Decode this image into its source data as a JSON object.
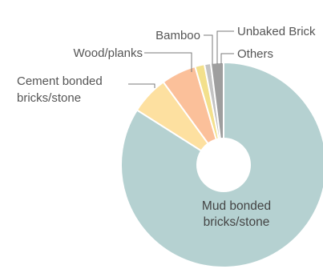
{
  "chart_data": {
    "type": "pie",
    "title": "",
    "donut": true,
    "slices": [
      {
        "label": "Mud bonded bricks/stone",
        "label_lines": [
          "Mud bonded",
          "bricks/stone"
        ],
        "value": 84.0,
        "color": "#b5d1d1"
      },
      {
        "label": "Cement bonded bricks/stone",
        "label_lines": [
          "Cement bonded",
          "bricks/stone"
        ],
        "value": 6.0,
        "color": "#fde0a0"
      },
      {
        "label": "Wood/planks",
        "label_lines": [
          "Wood/planks"
        ],
        "value": 5.5,
        "color": "#fbc09a"
      },
      {
        "label": "Bamboo",
        "label_lines": [
          "Bamboo"
        ],
        "value": 1.5,
        "color": "#f3e08c"
      },
      {
        "label": "Unbaked Bricks",
        "label_lines": [
          "Unbaked Brick"
        ],
        "value": 1.0,
        "color": "#c3c3c3"
      },
      {
        "label": "Others",
        "label_lines": [
          "Others"
        ],
        "value": 2.0,
        "color": "#9e9e9e"
      }
    ]
  }
}
